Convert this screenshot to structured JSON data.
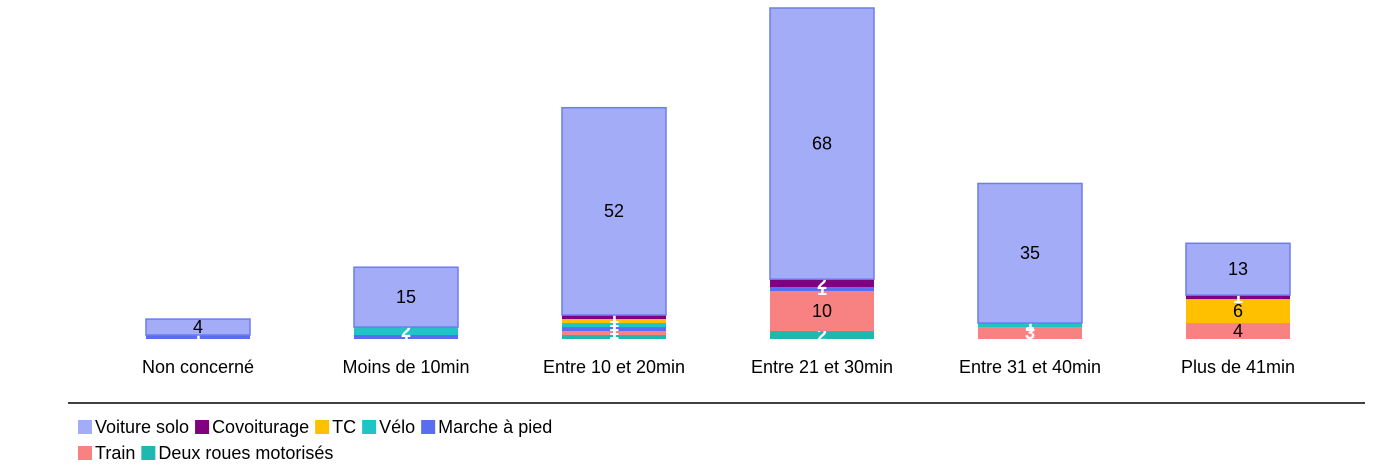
{
  "chart_data": {
    "type": "stacked_bar",
    "categories": [
      "Non concerné",
      "Moins de 10min",
      "Entre 10 et 20min",
      "Entre 21 et 30min",
      "Entre 31 et 40min",
      "Plus de 41min"
    ],
    "series": [
      {
        "name": "Voiture solo",
        "color": "#a3acf7",
        "values": [
          4,
          15,
          52,
          68,
          35,
          13
        ]
      },
      {
        "name": "Covoiturage",
        "color": "#800080",
        "values": [
          null,
          null,
          1,
          2,
          null,
          1
        ]
      },
      {
        "name": "TC",
        "color": "#ffc000",
        "values": [
          null,
          null,
          1,
          null,
          null,
          6
        ]
      },
      {
        "name": "Vélo",
        "color": "#1fc4c4",
        "values": [
          null,
          2,
          1,
          null,
          1,
          null
        ]
      },
      {
        "name": "Marche à pied",
        "color": "#5a6df0",
        "values": [
          1,
          1,
          1,
          1,
          null,
          null
        ]
      },
      {
        "name": "Train",
        "color": "#f88282",
        "values": [
          null,
          null,
          1,
          10,
          3,
          4
        ]
      },
      {
        "name": "Deux roues motorisés",
        "color": "#1eb8b0",
        "values": [
          null,
          null,
          1,
          2,
          null,
          null
        ]
      }
    ],
    "ylim": [
      0,
      83
    ],
    "legend": "bottom"
  }
}
